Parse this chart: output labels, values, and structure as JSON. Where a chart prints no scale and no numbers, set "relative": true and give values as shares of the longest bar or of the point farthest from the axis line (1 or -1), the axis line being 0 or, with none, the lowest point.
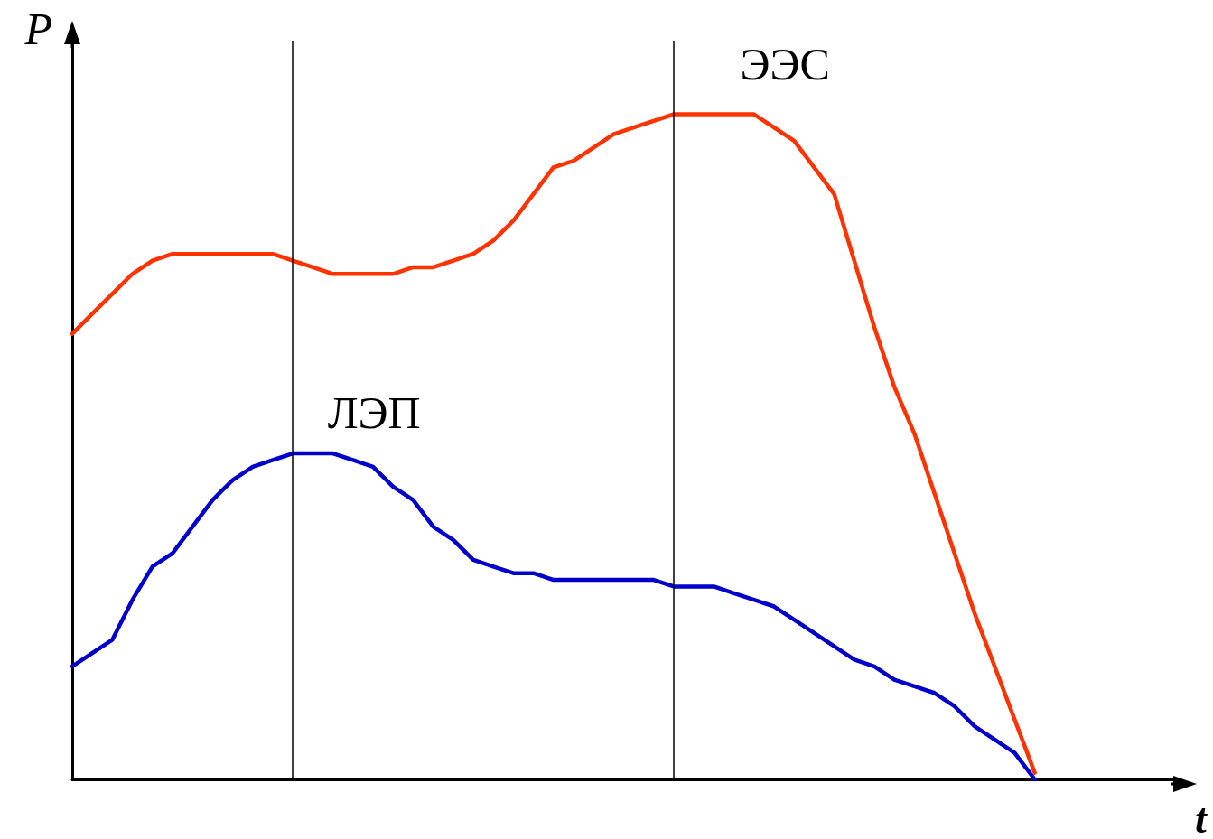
{
  "chart_data": {
    "type": "line",
    "relative": true,
    "xlabel": "t",
    "ylabel": "P",
    "marker": "none",
    "line_style": "solid",
    "grid": false,
    "legend": false,
    "categories": [
      null,
      null,
      null,
      null,
      null,
      null,
      null,
      null,
      null,
      null,
      null,
      null,
      null,
      null,
      null,
      null,
      null,
      null,
      null,
      null,
      null,
      null,
      null,
      null,
      null,
      null,
      null,
      null,
      null,
      null,
      null,
      null,
      null,
      null,
      null,
      null,
      null,
      null,
      null,
      null,
      null,
      null,
      null,
      null,
      null,
      null,
      null,
      null,
      null,
      null,
      null,
      null,
      null,
      null,
      null,
      null
    ],
    "series": [
      {
        "name": "ЭЭС",
        "color": "#ff3300",
        "values": [
          0.67,
          0.7,
          0.73,
          0.76,
          0.78,
          0.79,
          0.79,
          0.79,
          0.79,
          0.79,
          0.79,
          0.78,
          0.77,
          0.76,
          0.76,
          0.76,
          0.76,
          0.77,
          0.77,
          0.78,
          0.79,
          0.81,
          0.84,
          0.88,
          0.92,
          0.93,
          0.95,
          0.97,
          0.98,
          0.99,
          1.0,
          1.0,
          1.0,
          1.0,
          1.0,
          0.98,
          0.96,
          0.92,
          0.88,
          0.78,
          0.68,
          0.59,
          0.52,
          0.43,
          0.34,
          0.25,
          0.17,
          0.09,
          0.01,
          null,
          null,
          null,
          null,
          null,
          null,
          null
        ]
      },
      {
        "name": "ЛЭП",
        "color": "#0000cc",
        "values": [
          0.17,
          0.19,
          0.21,
          0.27,
          0.32,
          0.34,
          0.38,
          0.42,
          0.45,
          0.47,
          0.48,
          0.49,
          0.49,
          0.49,
          0.48,
          0.47,
          0.44,
          0.42,
          0.38,
          0.36,
          0.33,
          0.32,
          0.31,
          0.31,
          0.3,
          0.3,
          0.3,
          0.3,
          0.3,
          0.3,
          0.29,
          0.29,
          0.29,
          0.28,
          0.27,
          0.26,
          0.24,
          0.22,
          0.2,
          0.18,
          0.17,
          0.15,
          0.14,
          0.13,
          0.11,
          0.08,
          0.06,
          0.04,
          0.0,
          null,
          null,
          null,
          null,
          null,
          null,
          null
        ]
      }
    ]
  }
}
